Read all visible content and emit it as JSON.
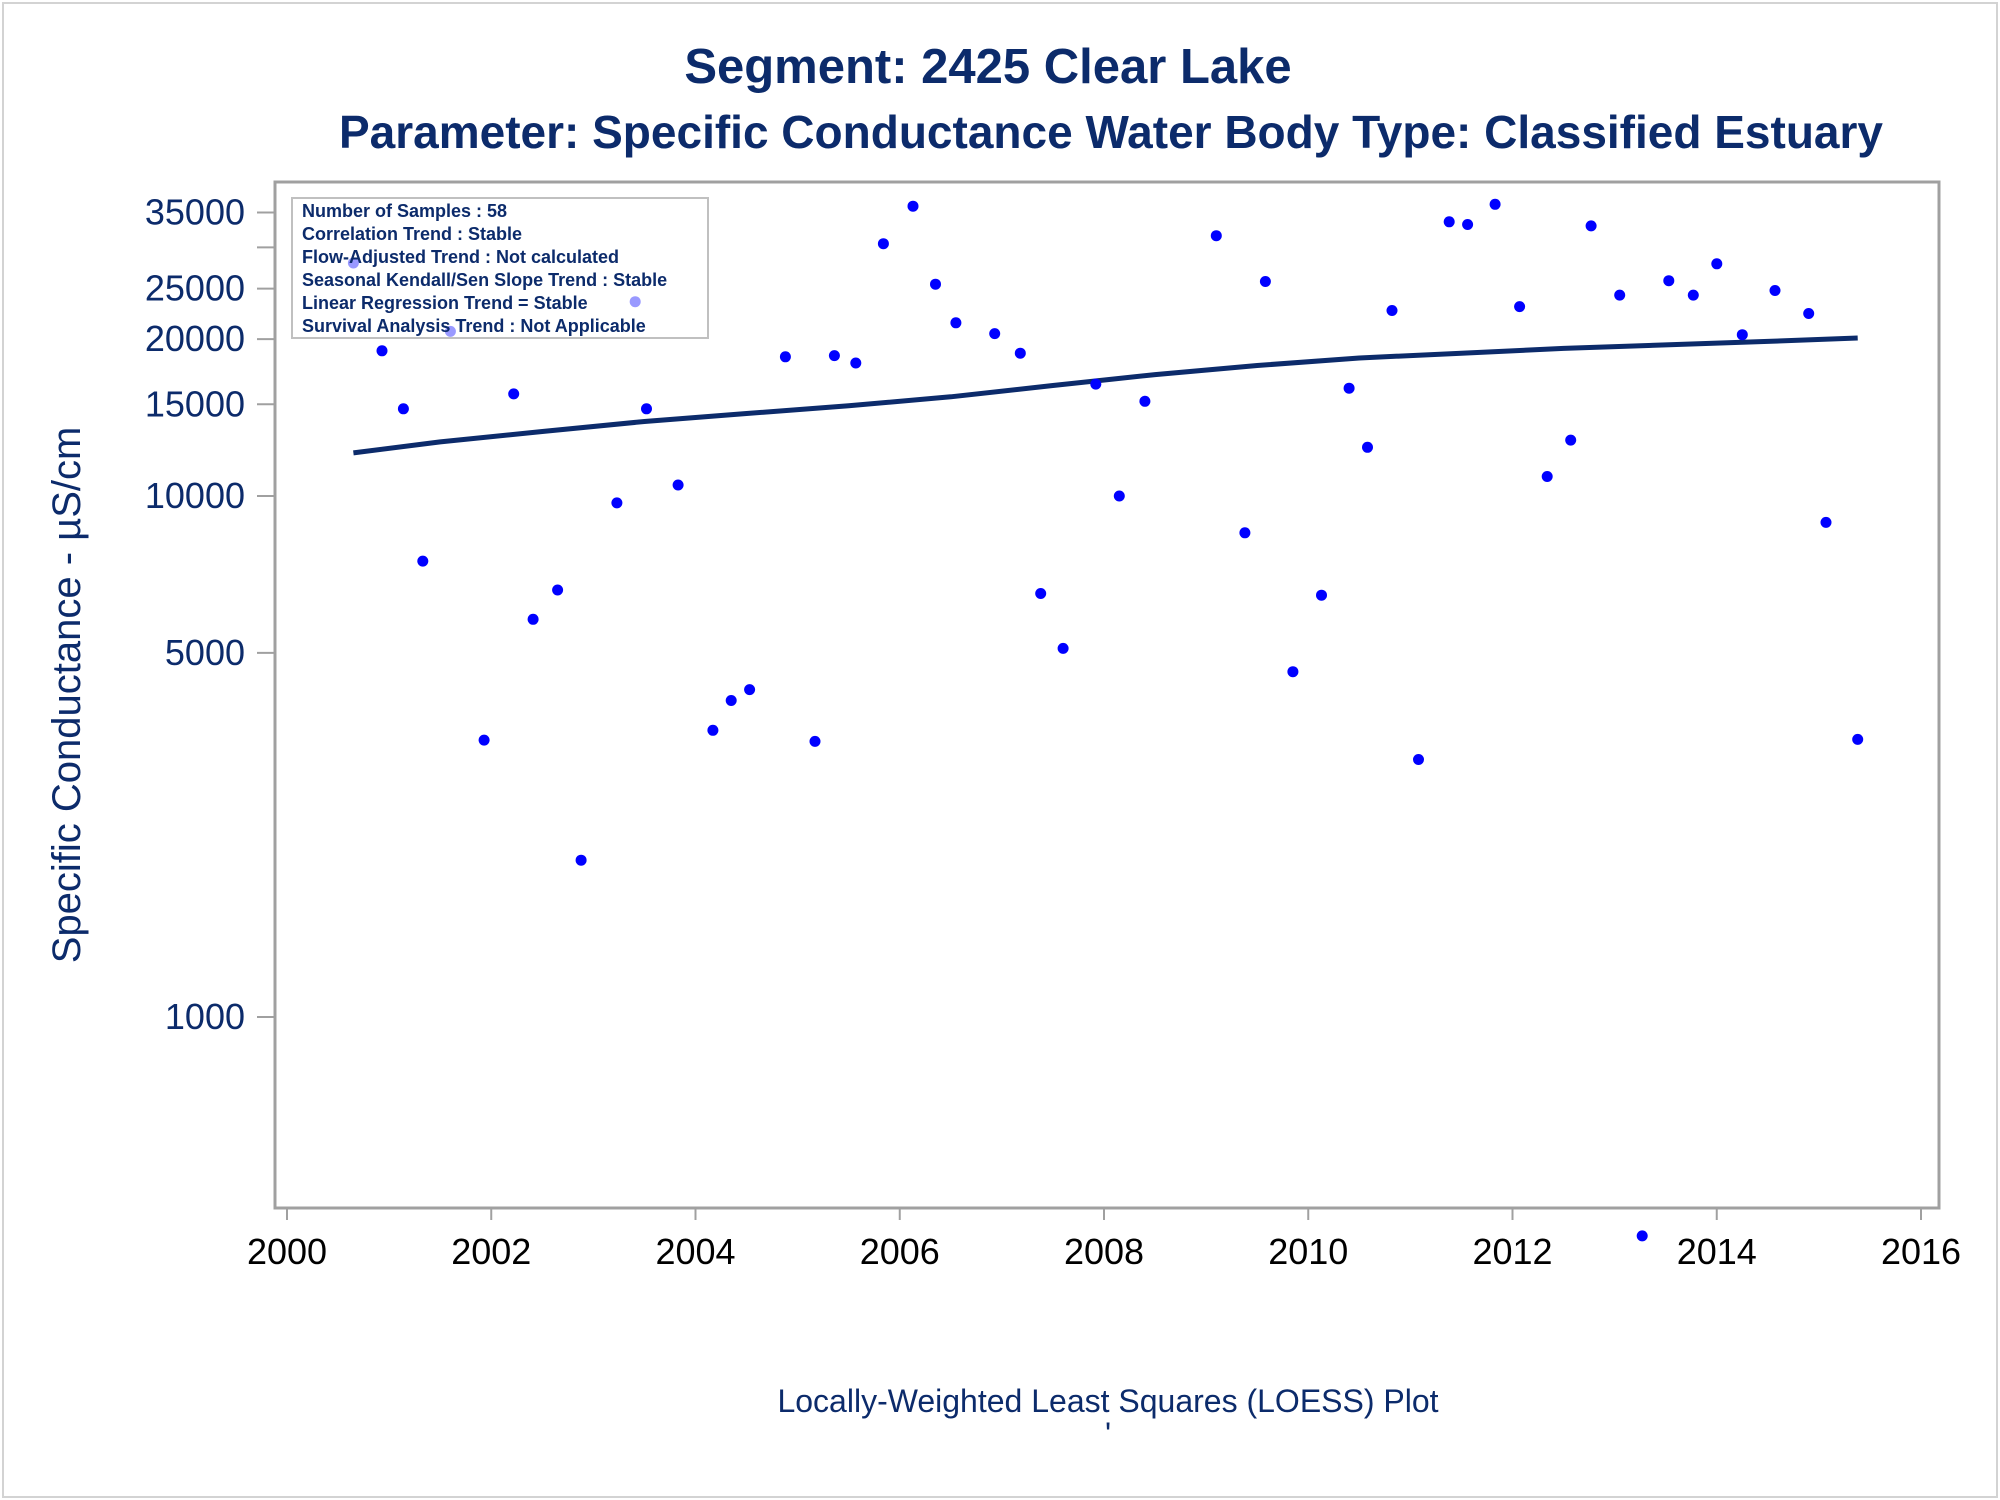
{
  "title_line1": "Segment: 2425  Clear Lake",
  "title_line2": "Parameter: Specific Conductance   Water Body Type: Classified Estuary",
  "footnote": "Locally-Weighted Least Squares (LOESS) Plot",
  "footnote_mark": "'",
  "stats_box": [
    "Number of Samples : 58",
    "Correlation Trend : Stable",
    "Flow-Adjusted Trend : Not calculated",
    "Seasonal Kendall/Sen Slope Trend : Stable",
    "Linear Regression Trend = Stable",
    "Survival Analysis Trend : Not Applicable"
  ],
  "colors": {
    "points": "#0000ff",
    "line": "#0c2b6b",
    "text": "#0c2b6b",
    "axis": "#a0a0a0"
  },
  "chart_data": {
    "type": "scatter",
    "title": "Segment: 2425  Clear Lake",
    "subtitle": "Parameter: Specific Conductance   Water Body Type: Classified Estuary",
    "xlabel": "",
    "ylabel": "Specific Conductance -  µS/cm",
    "yscale": "log",
    "xlim": [
      2000,
      2016
    ],
    "ylim": [
      370,
      37500
    ],
    "x_ticks": [
      "2000",
      "2002",
      "2004",
      "2006",
      "2008",
      "2010",
      "2012",
      "2014",
      "2016"
    ],
    "y_ticks": [
      "1000",
      "5000",
      "10000",
      "15000",
      "20000",
      "25000",
      "35000"
    ],
    "y_minor_ticks": [
      30000
    ],
    "grid": false,
    "series": [
      {
        "type": "scatter",
        "points": [
          [
            2000.65,
            28000
          ],
          [
            2000.93,
            19000
          ],
          [
            2001.14,
            14700
          ],
          [
            2001.33,
            7500
          ],
          [
            2001.6,
            20700
          ],
          [
            2001.93,
            3400
          ],
          [
            2002.22,
            15700
          ],
          [
            2002.41,
            5800
          ],
          [
            2002.65,
            6600
          ],
          [
            2002.88,
            2000
          ],
          [
            2003.23,
            9700
          ],
          [
            2003.41,
            23600
          ],
          [
            2003.52,
            14700
          ],
          [
            2003.83,
            10500
          ],
          [
            2004.17,
            3550
          ],
          [
            2004.35,
            4050
          ],
          [
            2004.53,
            4250
          ],
          [
            2004.88,
            18500
          ],
          [
            2005.17,
            3380
          ],
          [
            2005.36,
            18600
          ],
          [
            2005.57,
            18000
          ],
          [
            2005.84,
            30500
          ],
          [
            2006.13,
            36000
          ],
          [
            2006.35,
            25500
          ],
          [
            2006.55,
            21500
          ],
          [
            2006.93,
            20500
          ],
          [
            2007.18,
            18800
          ],
          [
            2007.38,
            6500
          ],
          [
            2007.6,
            5100
          ],
          [
            2007.92,
            16400
          ],
          [
            2008.15,
            10000
          ],
          [
            2008.4,
            15200
          ],
          [
            2009.1,
            31600
          ],
          [
            2009.38,
            8500
          ],
          [
            2009.58,
            25800
          ],
          [
            2009.85,
            4600
          ],
          [
            2010.13,
            6450
          ],
          [
            2010.4,
            16100
          ],
          [
            2010.58,
            12400
          ],
          [
            2010.82,
            22700
          ],
          [
            2011.08,
            3120
          ],
          [
            2011.38,
            33600
          ],
          [
            2011.56,
            33200
          ],
          [
            2011.83,
            36300
          ],
          [
            2012.07,
            23100
          ],
          [
            2012.34,
            10900
          ],
          [
            2012.57,
            12800
          ],
          [
            2012.77,
            33000
          ],
          [
            2013.05,
            24300
          ],
          [
            2013.27,
            380
          ],
          [
            2013.53,
            25900
          ],
          [
            2013.77,
            24300
          ],
          [
            2014.0,
            27900
          ],
          [
            2014.25,
            20400
          ],
          [
            2014.57,
            24800
          ],
          [
            2014.9,
            22400
          ],
          [
            2015.07,
            8900
          ],
          [
            2015.38,
            3410
          ]
        ]
      },
      {
        "type": "line",
        "points": [
          [
            2000.65,
            12100
          ],
          [
            2001.5,
            12700
          ],
          [
            2002.5,
            13300
          ],
          [
            2003.5,
            13900
          ],
          [
            2004.5,
            14400
          ],
          [
            2005.5,
            14900
          ],
          [
            2006.5,
            15500
          ],
          [
            2007.5,
            16300
          ],
          [
            2008.5,
            17100
          ],
          [
            2009.5,
            17800
          ],
          [
            2010.5,
            18400
          ],
          [
            2011.5,
            18800
          ],
          [
            2012.5,
            19200
          ],
          [
            2013.5,
            19500
          ],
          [
            2014.5,
            19800
          ],
          [
            2015.38,
            20100
          ]
        ]
      }
    ]
  }
}
